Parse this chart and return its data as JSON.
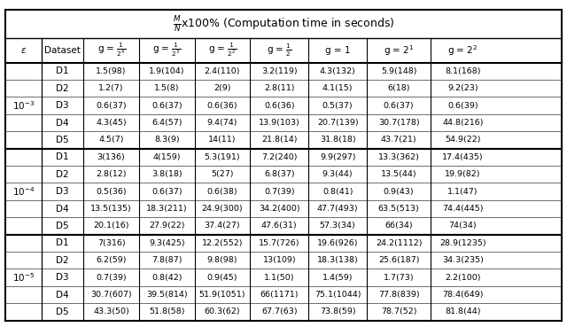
{
  "title": "$\\frac{M}{N}$x100% (Computation time in seconds)",
  "col_headers": [
    "$\\epsilon$",
    "Dataset",
    "g = $\\frac{1}{2^4}$",
    "g = $\\frac{1}{2^3}$",
    "g = $\\frac{1}{2^2}$",
    "g = $\\frac{1}{2}$",
    "g = 1",
    "g = $2^1$",
    "g = $2^2$"
  ],
  "epsilon_labels": [
    "$10^{-3}$",
    "$10^{-4}$",
    "$10^{-5}$"
  ],
  "datasets": [
    "D1",
    "D2",
    "D3",
    "D4",
    "D5"
  ],
  "table_data": [
    [
      "1.5(98)",
      "1.9(104)",
      "2.4(110)",
      "3.2(119)",
      "4.3(132)",
      "5.9(148)",
      "8.1(168)"
    ],
    [
      "1.2(7)",
      "1.5(8)",
      "2(9)",
      "2.8(11)",
      "4.1(15)",
      "6(18)",
      "9.2(23)"
    ],
    [
      "0.6(37)",
      "0.6(37)",
      "0.6(36)",
      "0.6(36)",
      "0.5(37)",
      "0.6(37)",
      "0.6(39)"
    ],
    [
      "4.3(45)",
      "6.4(57)",
      "9.4(74)",
      "13.9(103)",
      "20.7(139)",
      "30.7(178)",
      "44.8(216)"
    ],
    [
      "4.5(7)",
      "8.3(9)",
      "14(11)",
      "21.8(14)",
      "31.8(18)",
      "43.7(21)",
      "54.9(22)"
    ],
    [
      "3(136)",
      "4(159)",
      "5.3(191)",
      "7.2(240)",
      "9.9(297)",
      "13.3(362)",
      "17.4(435)"
    ],
    [
      "2.8(12)",
      "3.8(18)",
      "5(27)",
      "6.8(37)",
      "9.3(44)",
      "13.5(44)",
      "19.9(82)"
    ],
    [
      "0.5(36)",
      "0.6(37)",
      "0.6(38)",
      "0.7(39)",
      "0.8(41)",
      "0.9(43)",
      "1.1(47)"
    ],
    [
      "13.5(135)",
      "18.3(211)",
      "24.9(300)",
      "34.2(400)",
      "47.7(493)",
      "63.5(513)",
      "74.4(445)"
    ],
    [
      "20.1(16)",
      "27.9(22)",
      "37.4(27)",
      "47.6(31)",
      "57.3(34)",
      "66(34)",
      "74(34)"
    ],
    [
      "7(316)",
      "9.3(425)",
      "12.2(552)",
      "15.7(726)",
      "19.6(926)",
      "24.2(1112)",
      "28.9(1235)"
    ],
    [
      "6.2(59)",
      "7.8(87)",
      "9.8(98)",
      "13(109)",
      "18.3(138)",
      "25.6(187)",
      "34.3(235)"
    ],
    [
      "0.7(39)",
      "0.8(42)",
      "0.9(45)",
      "1.1(50)",
      "1.4(59)",
      "1.7(73)",
      "2.2(100)"
    ],
    [
      "30.7(607)",
      "39.5(814)",
      "51.9(1051)",
      "66(1171)",
      "75.1(1044)",
      "77.8(839)",
      "78.4(649)"
    ],
    [
      "43.3(50)",
      "51.8(58)",
      "60.3(62)",
      "67.7(63)",
      "73.8(59)",
      "78.7(52)",
      "81.8(44)"
    ]
  ],
  "bg_color": "#ffffff",
  "text_color": "#000000",
  "header_bg": "#ffffff",
  "grid_color": "#000000"
}
